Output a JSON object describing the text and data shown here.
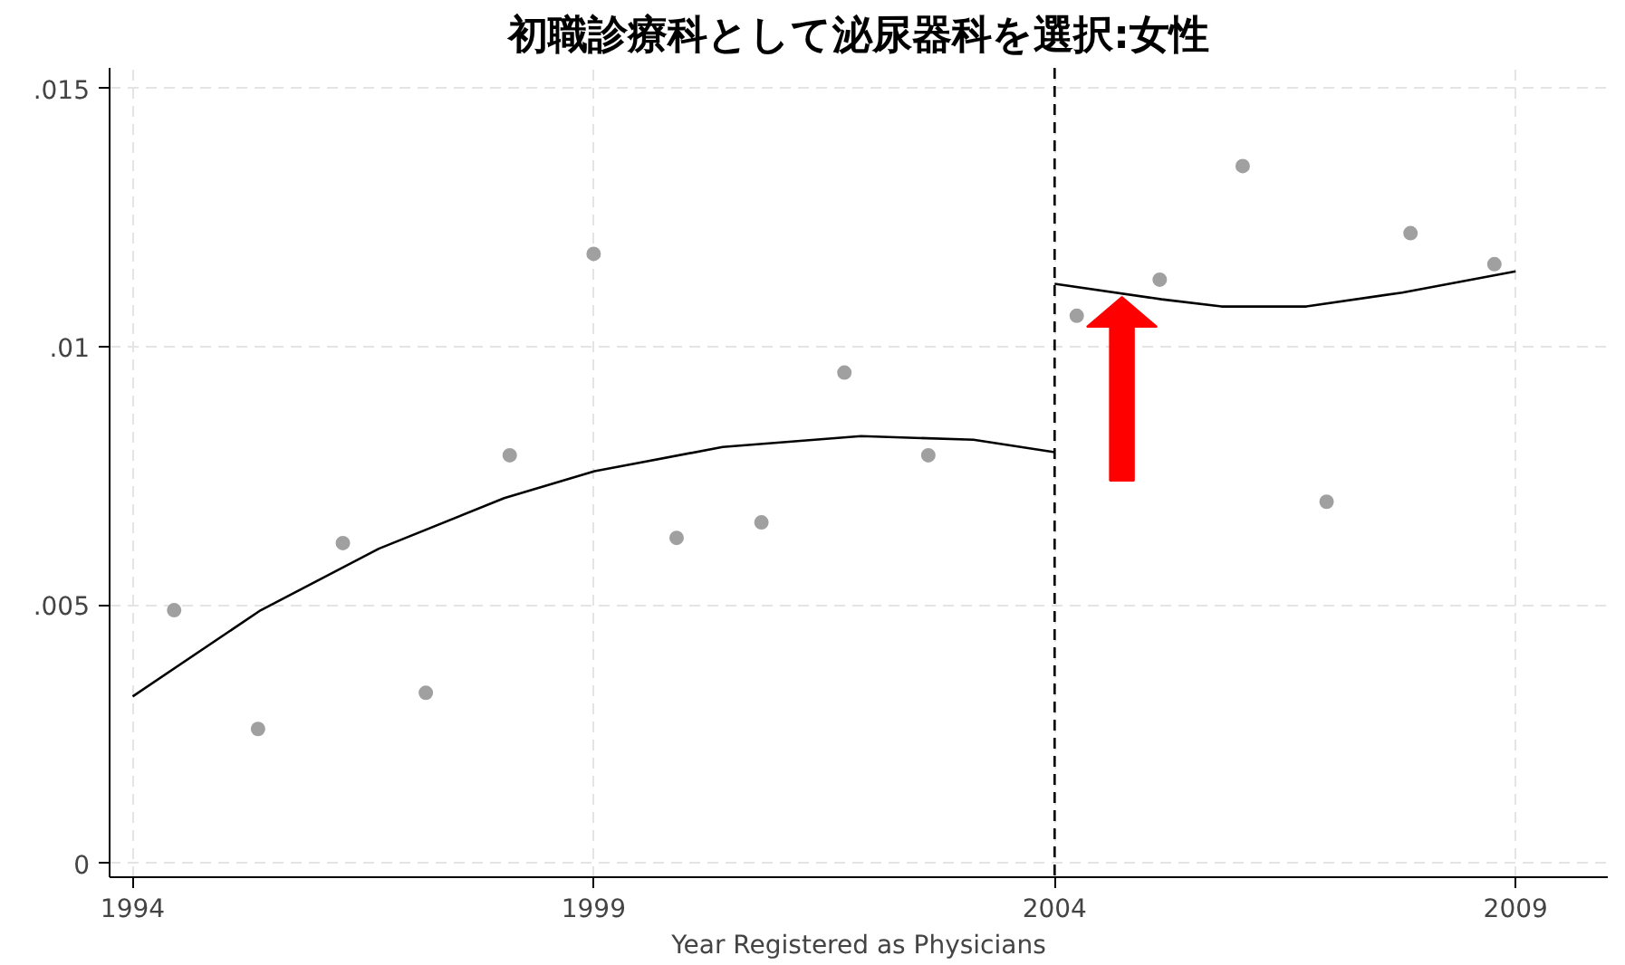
{
  "chart_data": {
    "type": "scatter",
    "title": "初職診療科として泌尿器科を選択:女性",
    "xlabel": "Year Registered as Physicians",
    "xlim": [
      1993.75,
      2010.0
    ],
    "ylim": [
      -0.00027,
      0.0154
    ],
    "xticks": [
      1994,
      1999,
      2004,
      2009
    ],
    "yticks": [
      {
        "value": 0,
        "label": "0"
      },
      {
        "value": 0.005,
        "label": ".005"
      },
      {
        "value": 0.01,
        "label": ".01"
      },
      {
        "value": 0.015,
        "label": ".015"
      }
    ],
    "grid": true,
    "marker": "circle",
    "ref_lines": [
      {
        "axis": "x",
        "value": 2004,
        "color": "#000000",
        "line_style": "dashed"
      }
    ],
    "series": [
      {
        "color": "#a0a0a0",
        "x": [
          1994.45,
          1995.36,
          1996.28,
          1997.18,
          1998.09,
          1999.0,
          1999.9,
          2000.82,
          2001.72,
          2002.63,
          2004.24,
          2005.14,
          2006.04,
          2006.95,
          2007.86,
          2008.77
        ],
        "values": [
          0.0049,
          0.0026,
          0.0062,
          0.0033,
          0.0079,
          0.0118,
          0.0063,
          0.0066,
          0.0095,
          0.0079,
          0.0106,
          0.0113,
          0.0135,
          0.007,
          0.0122,
          0.0116
        ]
      },
      {
        "type": "line",
        "color": "#000000",
        "marker": "none",
        "x": [
          1994.0,
          1995.39,
          1996.67,
          1998.03,
          1999.01,
          2000.4,
          2001.9,
          2003.12,
          2004.0
        ],
        "values": [
          0.00323,
          0.0049,
          0.00609,
          0.00707,
          0.00759,
          0.00806,
          0.00827,
          0.0082,
          0.00796
        ]
      },
      {
        "type": "line",
        "color": "#000000",
        "marker": "none",
        "x": [
          2004.0,
          2005.16,
          2005.81,
          2006.73,
          2007.77,
          2009.0
        ],
        "values": [
          0.01122,
          0.01092,
          0.01078,
          0.01078,
          0.01105,
          0.01146
        ]
      }
    ]
  }
}
